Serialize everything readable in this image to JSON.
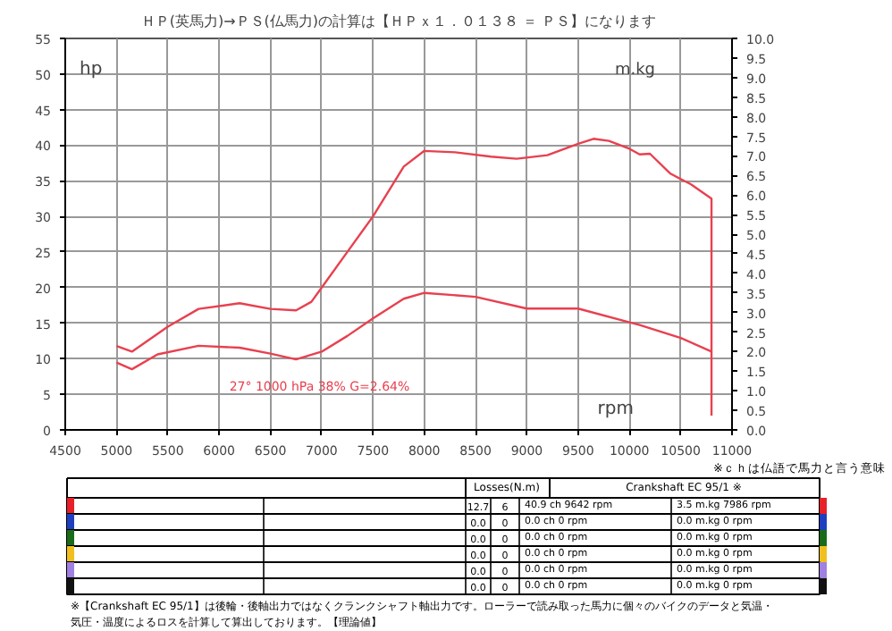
{
  "chart_data": {
    "type": "line",
    "title": "ＨＰ(英馬力)→ＰＳ(仏馬力)の計算は【ＨＰｘ１．０１３８ ＝ ＰＳ】になります",
    "xlabel": "rpm",
    "ylabel": "hp",
    "y2label": "m.kg",
    "xlim": [
      4500,
      11000
    ],
    "xticks": [
      4500,
      5000,
      5500,
      6000,
      6500,
      7000,
      7500,
      8000,
      8500,
      9000,
      9500,
      10000,
      10500,
      11000
    ],
    "ylim": [
      0,
      55
    ],
    "yticks": [
      0,
      5,
      10,
      15,
      20,
      25,
      30,
      35,
      40,
      45,
      50,
      55
    ],
    "y2lim": [
      0,
      10
    ],
    "y2ticks": [
      {
        "value": 0,
        "label": "0.0"
      },
      {
        "value": 0.5,
        "label": "0.5"
      },
      {
        "value": 1,
        "label": "1.0"
      },
      {
        "value": 1.5,
        "label": "1.5"
      },
      {
        "value": 2,
        "label": "2.0"
      },
      {
        "value": 2.5,
        "label": "2.5"
      },
      {
        "value": 3,
        "label": "3.0"
      },
      {
        "value": 3.5,
        "label": "3.5"
      },
      {
        "value": 4,
        "label": "4.0"
      },
      {
        "value": 4.5,
        "label": "4.5"
      },
      {
        "value": 5,
        "label": "5.0"
      },
      {
        "value": 5.5,
        "label": "5.5"
      },
      {
        "value": 6,
        "label": "6.0"
      },
      {
        "value": 6.5,
        "label": "6.5"
      },
      {
        "value": 7,
        "label": "7.0"
      },
      {
        "value": 7.5,
        "label": "7.5"
      },
      {
        "value": 8,
        "label": "8.0"
      },
      {
        "value": 8.5,
        "label": "8.5"
      },
      {
        "value": 9,
        "label": "9.0"
      },
      {
        "value": 9.5,
        "label": "9.5"
      },
      {
        "value": 10,
        "label": "10.0"
      }
    ],
    "grid": true,
    "series": [
      {
        "color": "#e8404f",
        "x": [
          5000,
          5150,
          5300,
          5500,
          5800,
          6200,
          6500,
          6750,
          6900,
          7000,
          7250,
          7500,
          7800,
          8000,
          8300,
          8650,
          8900,
          9200,
          9500,
          9650,
          9800,
          10000,
          10100,
          10200,
          10400,
          10600,
          10800,
          10800
        ],
        "values": [
          11.8,
          11.0,
          12.5,
          14.5,
          17.0,
          17.8,
          17.0,
          16.8,
          18.0,
          20.0,
          25.0,
          30.0,
          37.0,
          39.2,
          39.0,
          38.4,
          38.1,
          38.6,
          40.2,
          40.9,
          40.6,
          39.5,
          38.7,
          38.8,
          36.0,
          34.5,
          32.5,
          2.0
        ]
      },
      {
        "color": "#e8404f",
        "axis": "y2",
        "x": [
          5000,
          5150,
          5400,
          5800,
          6200,
          6500,
          6750,
          7000,
          7250,
          7500,
          7800,
          8000,
          8500,
          9000,
          9500,
          10000,
          10100,
          10500,
          10800
        ],
        "values": [
          1.72,
          1.55,
          1.93,
          2.15,
          2.1,
          1.95,
          1.8,
          2.0,
          2.4,
          2.85,
          3.35,
          3.5,
          3.4,
          3.1,
          3.1,
          2.75,
          2.68,
          2.35,
          2.0
        ]
      }
    ],
    "annotations": [
      "27°  1000 hPa  38%   G=2.64%",
      "※ｃｈは仏語で馬力と言う意味",
      "Losses(N.m)",
      "Crankshaft EC 95/1 ※",
      "12.7",
      "6",
      "40.9 ch 9642 rpm",
      "3.5 m.kg 7986 rpm",
      "0.0",
      "0",
      "0.0 ch 0 rpm",
      "0.0 m.kg 0 rpm",
      "0.0",
      "0",
      "0.0 ch 0 rpm",
      "0.0 m.kg 0 rpm",
      "0.0",
      "0",
      "0.0 ch 0 rpm",
      "0.0 m.kg 0 rpm",
      "0.0",
      "0",
      "0.0 ch 0 rpm",
      "0.0 m.kg 0 rpm",
      "0.0",
      "0",
      "0.0 ch 0 rpm",
      "0.0 m.kg 0 rpm",
      "※【Crankshaft EC 95/1】は後輪・後軸出力ではなくクランクシャフト軸出力です。ローラーで読み取った馬力に個々のバイクのデータと気温・気圧・温度によるロスを計算して算出しております。【理論値】"
    ]
  }
}
